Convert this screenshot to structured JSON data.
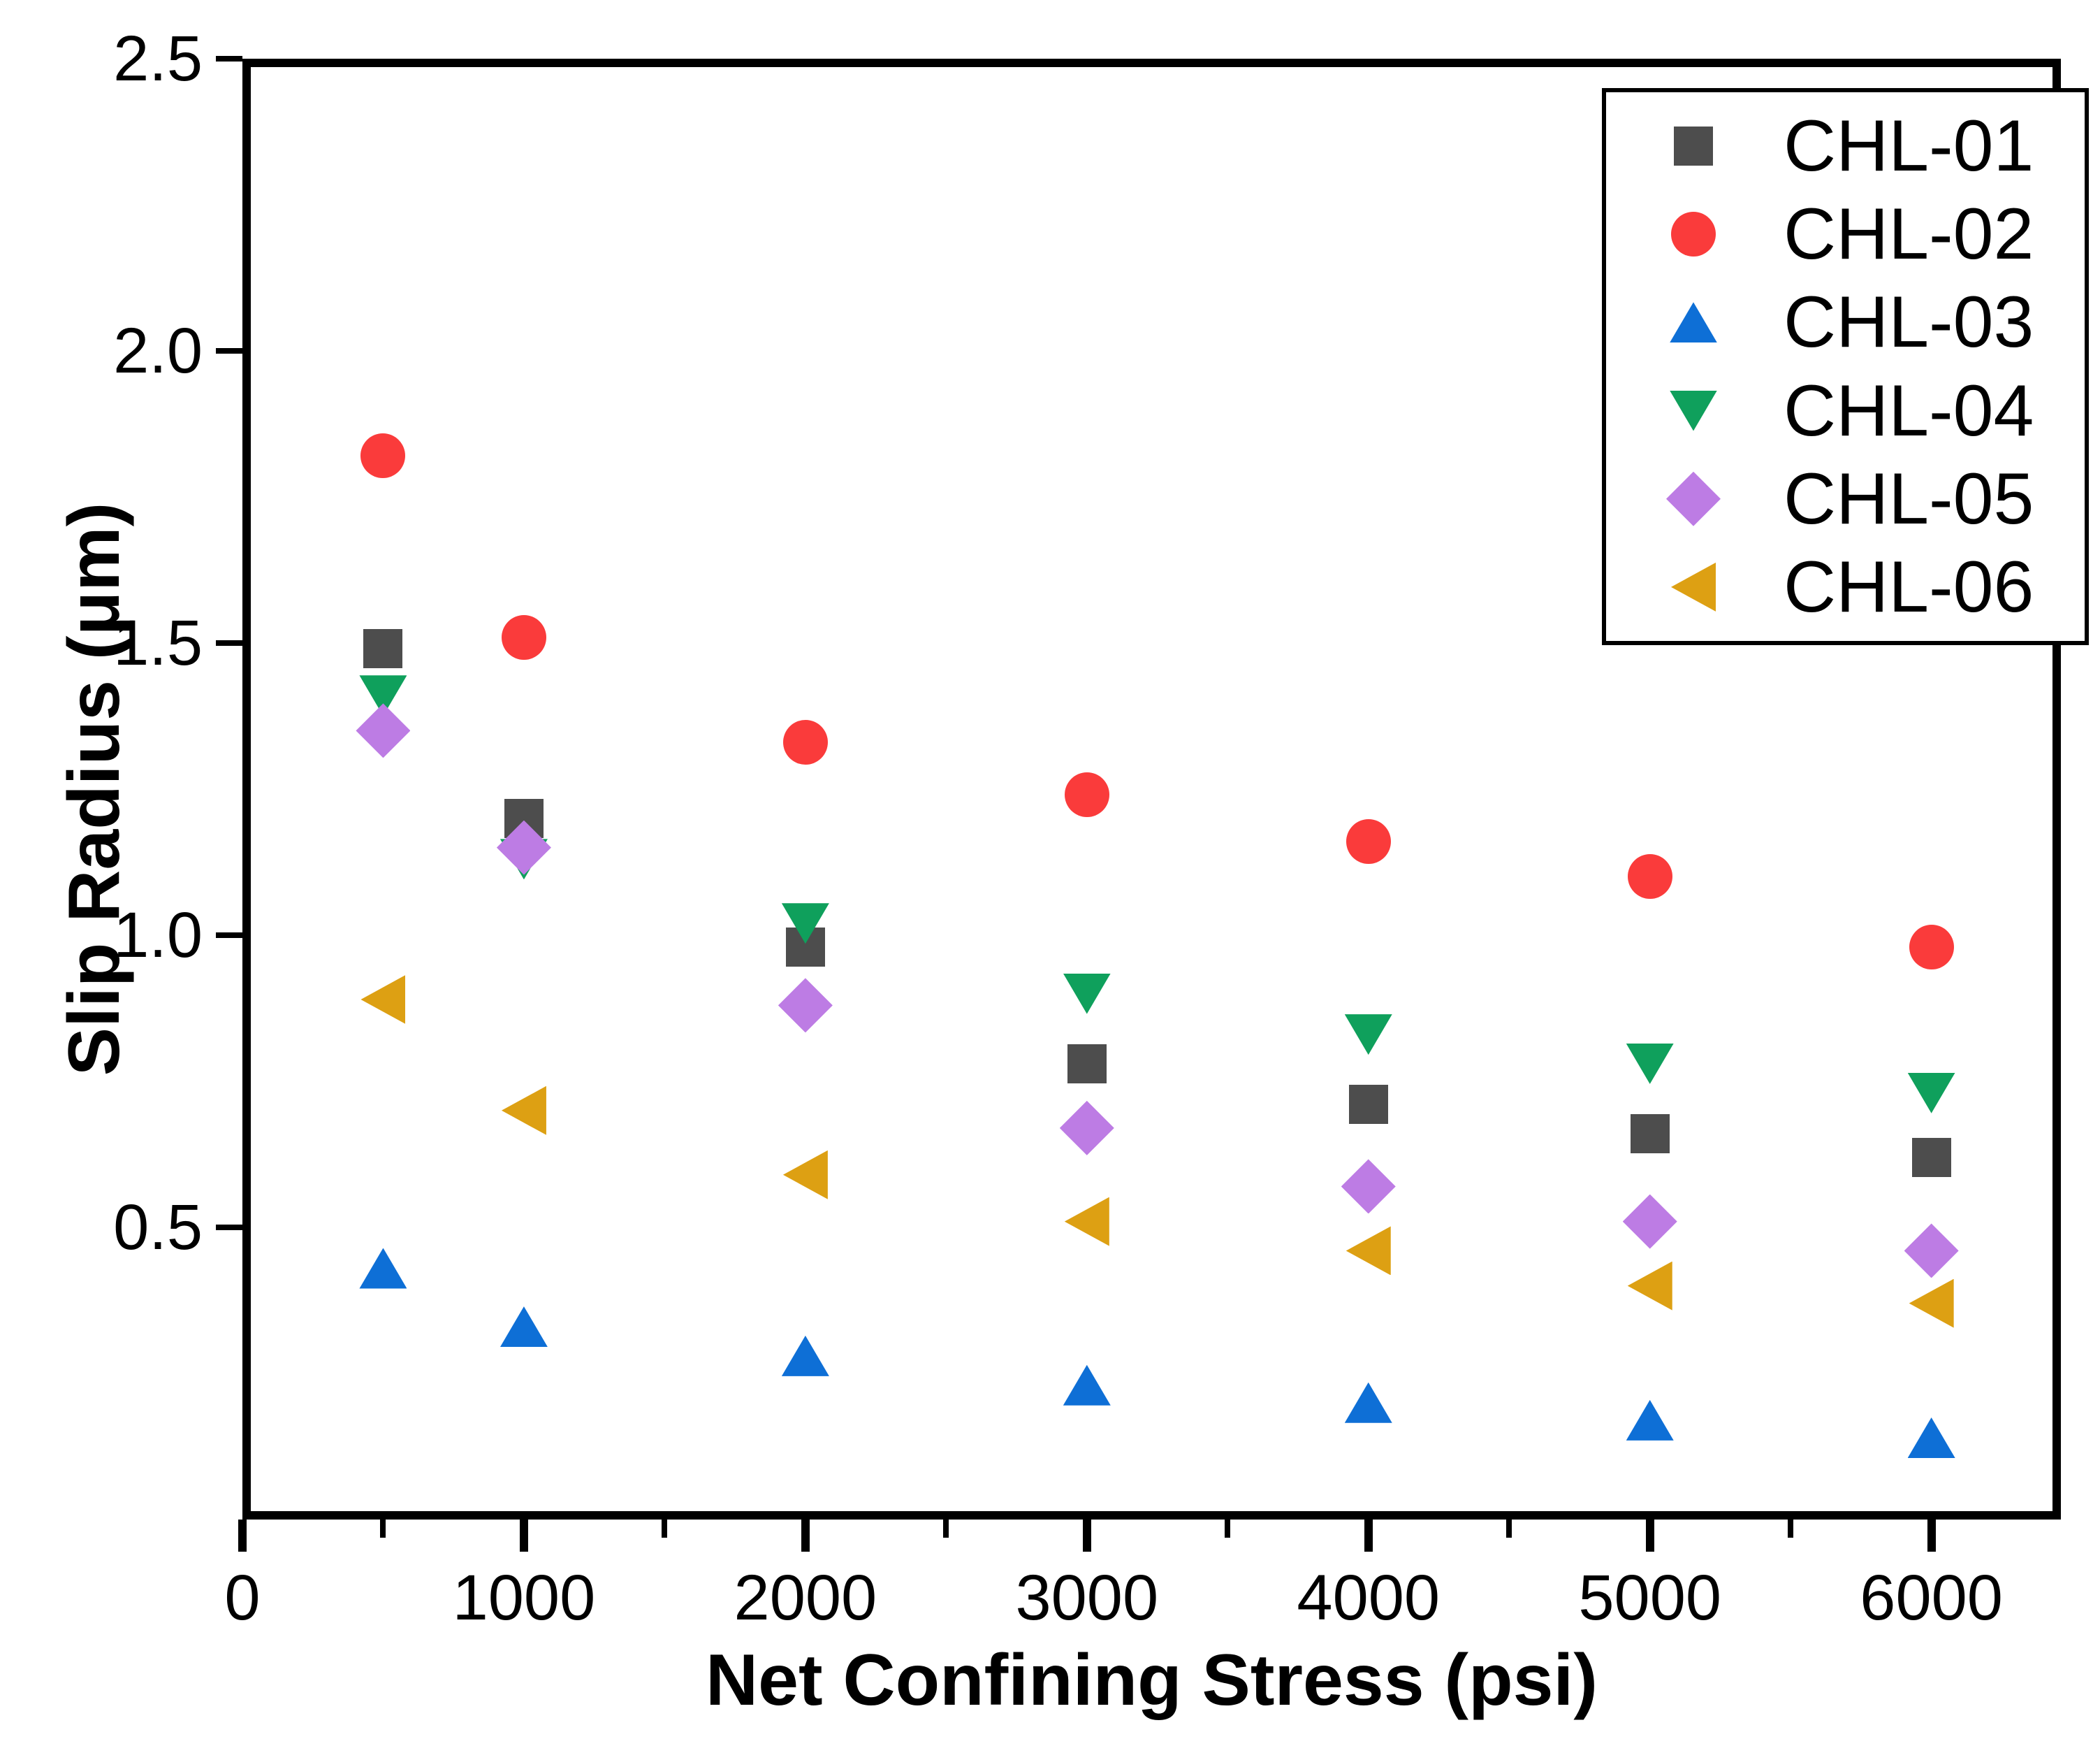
{
  "figure": {
    "background_color": "#ffffff",
    "axis_color": "#000000",
    "text_color": "#000000"
  },
  "chart_data": {
    "type": "scatter",
    "title": "",
    "xlabel": "Net Confining Stress (psi)",
    "ylabel": "Slip Radius (μm)",
    "xlim": [
      0,
      6460
    ],
    "ylim": [
      0,
      2.5
    ],
    "grid": false,
    "legend_position": "top-right",
    "x": [
      500,
      1000,
      2000,
      3000,
      4000,
      5000,
      6000
    ],
    "x_major_ticks": [
      {
        "value": 0,
        "label": "0"
      },
      {
        "value": 1000,
        "label": "1000"
      },
      {
        "value": 2000,
        "label": "2000"
      },
      {
        "value": 3000,
        "label": "3000"
      },
      {
        "value": 4000,
        "label": "4000"
      },
      {
        "value": 5000,
        "label": "5000"
      },
      {
        "value": 6000,
        "label": "6000"
      }
    ],
    "x_minor_ticks": [
      500,
      1500,
      2500,
      3500,
      4500,
      5500
    ],
    "y_major_ticks": [
      {
        "value": 0.5,
        "label": "0.5"
      },
      {
        "value": 1.0,
        "label": "1.0"
      },
      {
        "value": 1.5,
        "label": "1.5"
      },
      {
        "value": 2.0,
        "label": "2.0"
      },
      {
        "value": 2.5,
        "label": "2.5"
      }
    ],
    "series": [
      {
        "name": "CHL-01",
        "marker": "square",
        "color": "#4D4D4D",
        "values": [
          1.49,
          1.2,
          0.98,
          0.78,
          0.71,
          0.66,
          0.62
        ]
      },
      {
        "name": "CHL-02",
        "marker": "circle",
        "color": "#FA3B3B",
        "values": [
          1.82,
          1.51,
          1.33,
          1.24,
          1.16,
          1.1,
          0.98
        ]
      },
      {
        "name": "CHL-03",
        "marker": "triangle-up",
        "color": "#0E6FD6",
        "values": [
          0.43,
          0.33,
          0.28,
          0.23,
          0.2,
          0.17,
          0.14
        ]
      },
      {
        "name": "CHL-04",
        "marker": "triangle-down",
        "color": "#0FA05C",
        "values": [
          1.41,
          1.13,
          1.02,
          0.9,
          0.83,
          0.78,
          0.73
        ]
      },
      {
        "name": "CHL-05",
        "marker": "diamond",
        "color": "#BD7CE4",
        "values": [
          1.35,
          1.15,
          0.88,
          0.67,
          0.57,
          0.51,
          0.46
        ]
      },
      {
        "name": "CHL-06",
        "marker": "triangle-left",
        "color": "#DDA013",
        "values": [
          0.89,
          0.7,
          0.59,
          0.51,
          0.46,
          0.4,
          0.37
        ]
      }
    ]
  }
}
